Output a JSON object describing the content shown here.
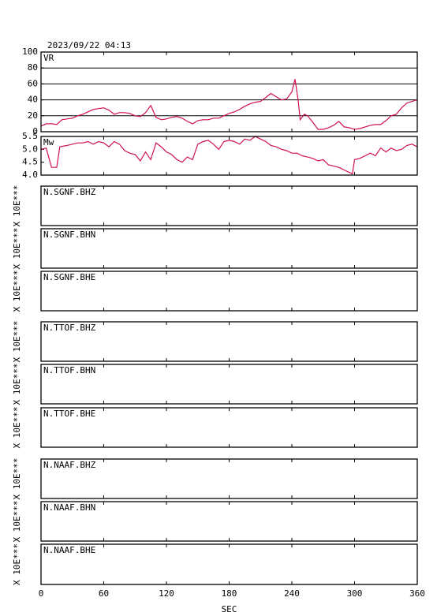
{
  "chart_data": [
    {
      "type": "line",
      "title": "2023/09/22 04:13",
      "label": "VR",
      "color": "#d0104c",
      "x": [
        0,
        5,
        10,
        15,
        20,
        25,
        30,
        35,
        40,
        45,
        50,
        55,
        60,
        65,
        70,
        75,
        80,
        85,
        90,
        95,
        100,
        105,
        110,
        115,
        120,
        125,
        130,
        135,
        140,
        145,
        150,
        155,
        160,
        165,
        170,
        175,
        180,
        185,
        190,
        195,
        200,
        205,
        210,
        215,
        220,
        225,
        230,
        235,
        240,
        243,
        246,
        248,
        252,
        255,
        260,
        265,
        270,
        275,
        280,
        285,
        290,
        295,
        300,
        305,
        310,
        315,
        320,
        325,
        330,
        335,
        340,
        345,
        350,
        355,
        360
      ],
      "values": [
        7,
        10,
        10,
        9,
        15,
        16,
        17,
        20,
        22,
        25,
        28,
        29,
        30,
        27,
        22,
        24,
        24,
        23,
        20,
        19,
        24,
        33,
        18,
        15,
        16,
        18,
        19,
        17,
        13,
        10,
        14,
        15,
        15,
        17,
        17,
        20,
        23,
        25,
        28,
        32,
        35,
        37,
        38,
        43,
        48,
        44,
        40,
        41,
        50,
        66,
        40,
        15,
        22,
        20,
        12,
        3,
        3,
        5,
        8,
        13,
        6,
        5,
        3,
        4,
        6,
        8,
        9,
        9,
        14,
        20,
        22,
        30,
        36,
        38,
        40
      ],
      "xlim": [
        0,
        360
      ],
      "xticks": [
        0,
        60,
        120,
        180,
        240,
        300,
        360
      ],
      "ylim": [
        0,
        100
      ],
      "yticks": [
        0,
        20,
        40,
        60,
        80,
        100
      ],
      "grid": true
    },
    {
      "type": "line",
      "label": "Mw",
      "color": "#d0104c",
      "x": [
        0,
        5,
        10,
        15,
        18,
        25,
        30,
        35,
        40,
        45,
        50,
        55,
        60,
        65,
        70,
        75,
        80,
        85,
        90,
        95,
        100,
        105,
        110,
        115,
        120,
        125,
        130,
        135,
        140,
        145,
        150,
        155,
        160,
        165,
        170,
        175,
        180,
        185,
        190,
        195,
        200,
        205,
        210,
        215,
        220,
        225,
        230,
        235,
        240,
        245,
        250,
        255,
        260,
        265,
        270,
        275,
        280,
        285,
        290,
        295,
        298,
        300,
        305,
        310,
        315,
        320,
        325,
        330,
        335,
        340,
        345,
        350,
        355,
        360
      ],
      "values": [
        5.0,
        5.05,
        4.3,
        4.3,
        5.1,
        5.15,
        5.2,
        5.25,
        5.25,
        5.3,
        5.2,
        5.3,
        5.25,
        5.1,
        5.3,
        5.2,
        4.95,
        4.85,
        4.8,
        4.55,
        4.9,
        4.6,
        5.25,
        5.1,
        4.9,
        4.8,
        4.6,
        4.5,
        4.7,
        4.6,
        5.2,
        5.3,
        5.35,
        5.2,
        5.0,
        5.3,
        5.35,
        5.3,
        5.2,
        5.4,
        5.35,
        5.5,
        5.4,
        5.3,
        5.15,
        5.1,
        5.0,
        4.95,
        4.85,
        4.85,
        4.75,
        4.7,
        4.65,
        4.55,
        4.6,
        4.4,
        4.35,
        4.3,
        4.2,
        4.1,
        4.05,
        4.6,
        4.65,
        4.75,
        4.85,
        4.75,
        5.05,
        4.9,
        5.05,
        4.95,
        5.0,
        5.15,
        5.2,
        5.1
      ],
      "xlim": [
        0,
        360
      ],
      "xticks": [
        0,
        60,
        120,
        180,
        240,
        300,
        360
      ],
      "ylim": [
        4,
        5.5
      ],
      "yticks": [
        {
          "value": 4,
          "label": "4.0"
        },
        4.5,
        {
          "value": 5,
          "label": "5.0"
        },
        5.5
      ],
      "grid": false
    },
    {
      "type": "waveform",
      "label": "N.SGNF.BHZ",
      "ylabel": "X 10E***",
      "xlim": [
        0,
        360
      ],
      "xticks": [
        0,
        60,
        120,
        180,
        240,
        300,
        360
      ]
    },
    {
      "type": "waveform",
      "label": "N.SGNF.BHN",
      "ylabel": "X 10E***",
      "xlim": [
        0,
        360
      ],
      "xticks": [
        0,
        60,
        120,
        180,
        240,
        300,
        360
      ]
    },
    {
      "type": "waveform",
      "label": "N.SGNF.BHE",
      "ylabel": "X 10E***",
      "xlim": [
        0,
        360
      ],
      "xticks": [
        0,
        60,
        120,
        180,
        240,
        300,
        360
      ]
    },
    {
      "type": "waveform",
      "label": "N.TTOF.BHZ",
      "ylabel": "X 10E***",
      "xlim": [
        0,
        360
      ],
      "xticks": [
        0,
        60,
        120,
        180,
        240,
        300,
        360
      ]
    },
    {
      "type": "waveform",
      "label": "N.TTOF.BHN",
      "ylabel": "X 10E***",
      "xlim": [
        0,
        360
      ],
      "xticks": [
        0,
        60,
        120,
        180,
        240,
        300,
        360
      ]
    },
    {
      "type": "waveform",
      "label": "N.TTOF.BHE",
      "ylabel": "X 10E***",
      "xlim": [
        0,
        360
      ],
      "xticks": [
        0,
        60,
        120,
        180,
        240,
        300,
        360
      ]
    },
    {
      "type": "waveform",
      "label": "N.NAAF.BHZ",
      "ylabel": "X 10E***",
      "xlim": [
        0,
        360
      ],
      "xticks": [
        0,
        60,
        120,
        180,
        240,
        300,
        360
      ]
    },
    {
      "type": "waveform",
      "label": "N.NAAF.BHN",
      "ylabel": "X 10E***",
      "xlim": [
        0,
        360
      ],
      "xticks": [
        0,
        60,
        120,
        180,
        240,
        300,
        360
      ]
    },
    {
      "type": "waveform",
      "label": "N.NAAF.BHE",
      "ylabel": "X 10E***",
      "xlim": [
        0,
        360
      ],
      "xticks": [
        0,
        60,
        120,
        180,
        240,
        300,
        360
      ],
      "xlabel": "SEC"
    }
  ]
}
